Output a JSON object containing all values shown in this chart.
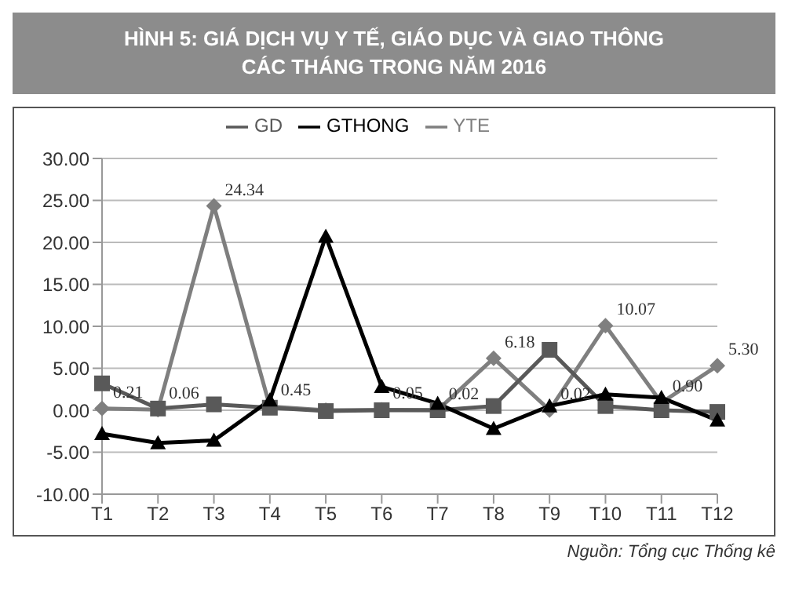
{
  "chart_data": {
    "type": "line",
    "title": "HÌNH 5: GIÁ DỊCH VỤ Y TẾ, GIÁO DỤC VÀ GIAO THÔNG CÁC THÁNG TRONG NĂM 2016",
    "categories": [
      "T1",
      "T2",
      "T3",
      "T4",
      "T5",
      "T6",
      "T7",
      "T8",
      "T9",
      "T10",
      "T11",
      "T12"
    ],
    "series": [
      {
        "name": "YTE",
        "color": "#7f7f7f",
        "marker": "diamond",
        "values": [
          0.21,
          0.06,
          24.34,
          0.45,
          0.0,
          0.05,
          0.02,
          6.18,
          0.02,
          10.07,
          0.9,
          5.3
        ],
        "value_labels": [
          "0.21",
          "0.06",
          "24.34",
          "0.45",
          null,
          "0.05",
          "0.02",
          "6.18",
          "0.02",
          "10.07",
          "0.90",
          "5.30"
        ]
      },
      {
        "name": "GD",
        "color": "#595959",
        "marker": "square",
        "values": [
          3.2,
          0.2,
          0.7,
          0.3,
          -0.1,
          0.0,
          0.0,
          0.5,
          7.2,
          0.5,
          0.0,
          -0.2
        ]
      },
      {
        "name": "GTHONG",
        "color": "#000000",
        "marker": "triangle",
        "values": [
          -2.8,
          -3.9,
          -3.6,
          1.2,
          20.7,
          2.8,
          0.8,
          -2.2,
          0.5,
          1.9,
          1.5,
          -1.2
        ]
      }
    ],
    "ylim": [
      -10,
      30
    ],
    "yticks": [
      {
        "value": -10,
        "label": "-10.00"
      },
      {
        "value": -5,
        "label": "-5.00"
      },
      {
        "value": 0,
        "label": "0.00"
      },
      {
        "value": 5,
        "label": "5.00"
      },
      {
        "value": 10,
        "label": "10.00"
      },
      {
        "value": 15,
        "label": "15.00"
      },
      {
        "value": 20,
        "label": "20.00"
      },
      {
        "value": 25,
        "label": "25.00"
      },
      {
        "value": 30,
        "label": "30.00"
      }
    ],
    "grid": "y",
    "legend": "top",
    "line_style": "solid",
    "annotations": [
      "Nguồn: Tổng cục Thống kê"
    ]
  }
}
